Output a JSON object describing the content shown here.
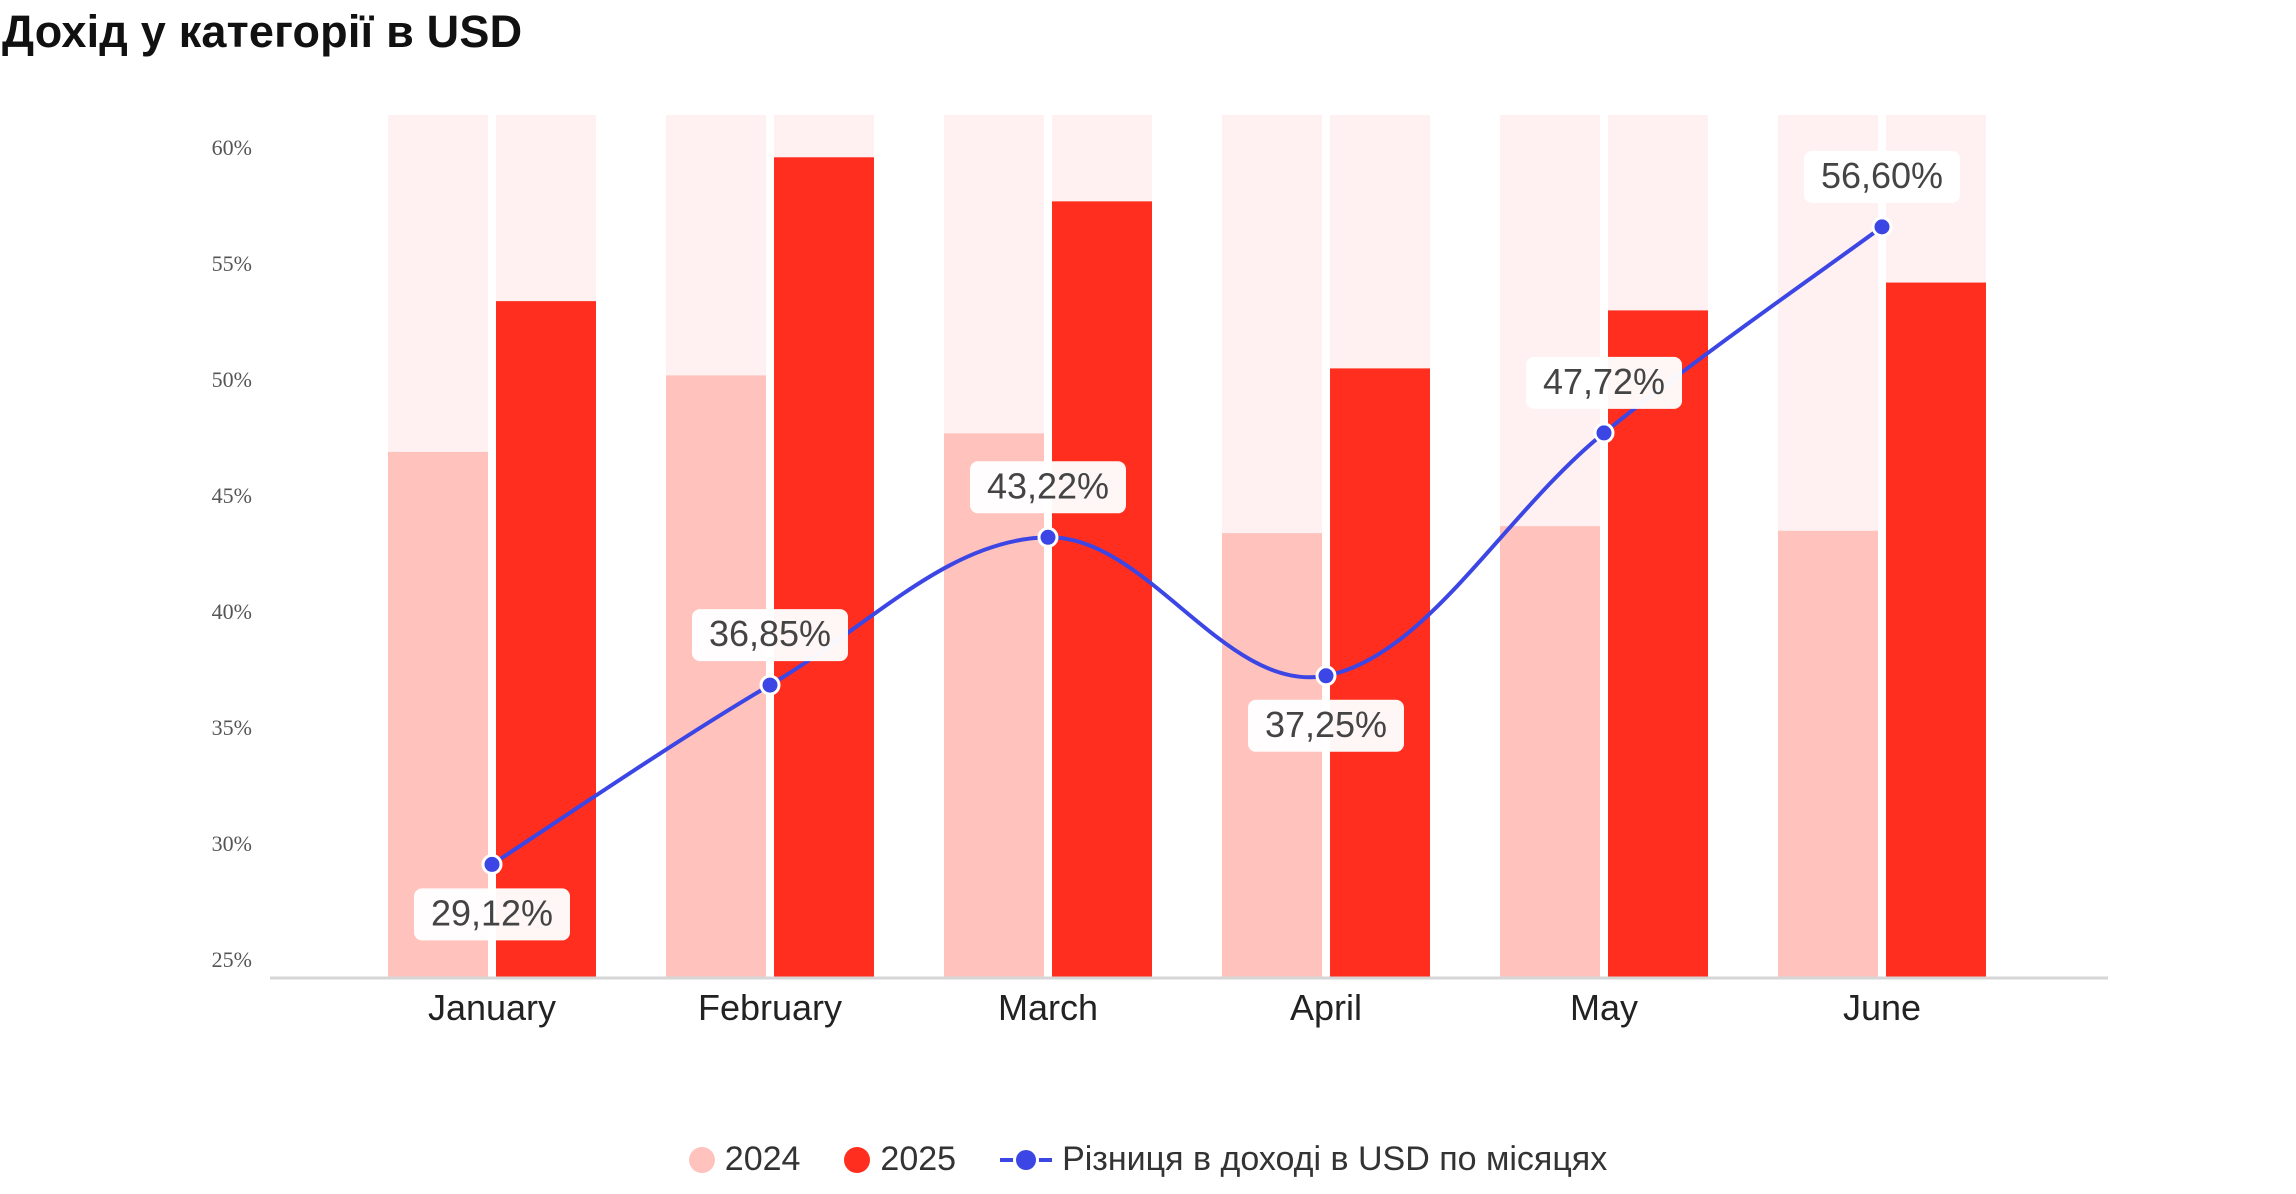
{
  "title": "Дохід у категорії в USD",
  "colors": {
    "bar_2024": "#FFC2BC",
    "bar_2025": "#FF2E1E",
    "bar_bg": "#FFF1F1",
    "line": "#3B46E4",
    "grid_axis": "#D6D6D6",
    "tick_text": "#555555",
    "label_text": "#444444"
  },
  "legend": {
    "item_2024": "2024",
    "item_2025": "2025",
    "item_line": "Різниця в доході в USD по місяцях"
  },
  "chart_data": {
    "type": "bar",
    "categories": [
      "January",
      "February",
      "March",
      "April",
      "May",
      "June"
    ],
    "ylim": [
      25,
      61
    ],
    "yticks": [
      "60%",
      "55%",
      "50%",
      "45%",
      "40%",
      "35%",
      "30%",
      "25%"
    ],
    "ytick_values": [
      60,
      55,
      50,
      45,
      40,
      35,
      30,
      25
    ],
    "series": [
      {
        "name": "2024",
        "values": [
          46.9,
          50.2,
          47.7,
          43.4,
          43.7,
          43.5
        ]
      },
      {
        "name": "2025",
        "values": [
          53.4,
          59.6,
          57.7,
          50.5,
          53.0,
          54.2
        ]
      },
      {
        "name": "Різниця в доході в USD по місяцях",
        "type": "line",
        "values": [
          29.12,
          36.85,
          43.22,
          37.25,
          47.72,
          56.6
        ],
        "labels": [
          "29,12%",
          "36,85%",
          "43,22%",
          "37,25%",
          "47,72%",
          "56,60%"
        ]
      }
    ],
    "grid": false,
    "legend_position": "bottom"
  }
}
